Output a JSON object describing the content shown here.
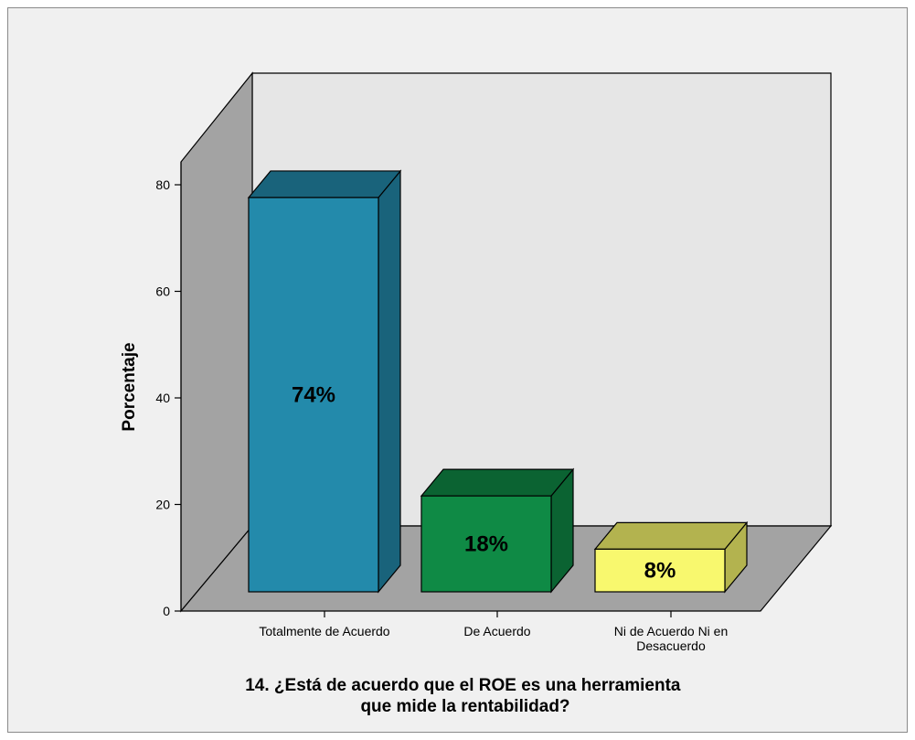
{
  "chart_data": {
    "type": "bar",
    "categories": [
      "Totalmente de Acuerdo",
      "De Acuerdo",
      "Ni de Acuerdo Ni en Desacuerdo"
    ],
    "category_lines": [
      [
        "Totalmente de Acuerdo"
      ],
      [
        "De Acuerdo"
      ],
      [
        "Ni de Acuerdo Ni en",
        "Desacuerdo"
      ]
    ],
    "values": [
      74,
      18,
      8
    ],
    "data_labels": [
      "74%",
      "18%",
      "8%"
    ],
    "colors": [
      "#238aab",
      "#0f8a45",
      "#f8f86e"
    ],
    "ylabel": "Porcentaje",
    "xlabel_lines": [
      "14. ¿Está de acuerdo que el ROE es una herramienta",
      "que mide la rentabilidad?"
    ],
    "ylim": [
      0,
      80
    ],
    "yticks": [
      0,
      20,
      40,
      60,
      80
    ],
    "legend": "none",
    "grid": false
  }
}
